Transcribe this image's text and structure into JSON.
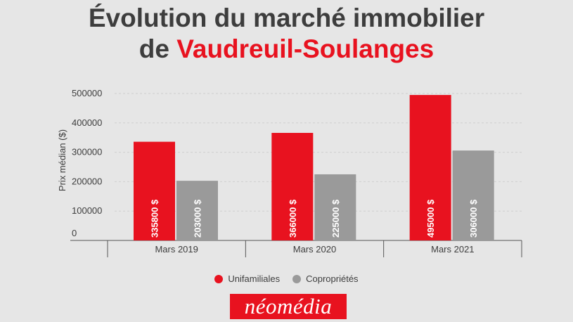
{
  "header": {
    "title_line1": "Évolution du marché immobilier",
    "title_line2_prefix": "de ",
    "title_line2_highlight": "Vaudreuil-Soulanges"
  },
  "colors": {
    "accent": "#e8121f",
    "secondary": "#9a9a9a",
    "title": "#3d3d3d",
    "background": "#e6e6e6"
  },
  "chart_data": {
    "type": "bar",
    "categories": [
      "Mars 2019",
      "Mars 2020",
      "Mars 2021"
    ],
    "series": [
      {
        "name": "Unifamiliales",
        "values": [
          335800,
          366000,
          495000
        ],
        "labels": [
          "335800 $",
          "366000 $",
          "495000 $"
        ],
        "color": "#e8121f"
      },
      {
        "name": "Copropriétés",
        "values": [
          203000,
          225000,
          306000
        ],
        "labels": [
          "203000 $",
          "225000 $",
          "306000 $"
        ],
        "color": "#9a9a9a"
      }
    ],
    "ylabel": "Prix médian ($)",
    "xlabel": "",
    "ylim": [
      0,
      500000
    ],
    "yticks": [
      "0",
      "100000",
      "200000",
      "300000",
      "400000",
      "500000"
    ],
    "grid": true,
    "legend_position": "bottom"
  },
  "branding": {
    "logo_text": "néomédia"
  }
}
